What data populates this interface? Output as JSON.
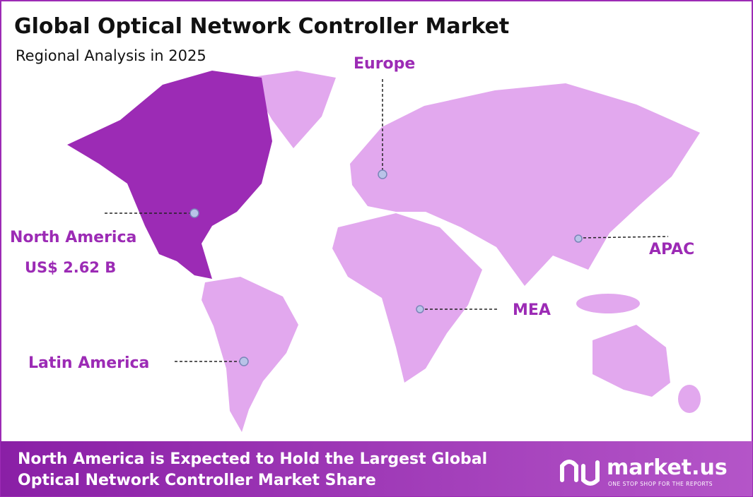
{
  "header": {
    "title": "Global Optical Network Controller Market",
    "subtitle": "Regional Analysis in 2025"
  },
  "regions": {
    "north_america": {
      "label": "North America",
      "value": "US$ 2.62 B"
    },
    "europe": {
      "label": "Europe"
    },
    "apac": {
      "label": "APAC"
    },
    "mea": {
      "label": "MEA"
    },
    "latin_america": {
      "label": "Latin America"
    }
  },
  "footer": {
    "line1": "North America is Expected to Hold the Largest Global",
    "line2": "Optical Network Controller Market Share",
    "logo": "market.us",
    "tagline": "ONE STOP SHOP FOR THE REPORTS"
  }
}
